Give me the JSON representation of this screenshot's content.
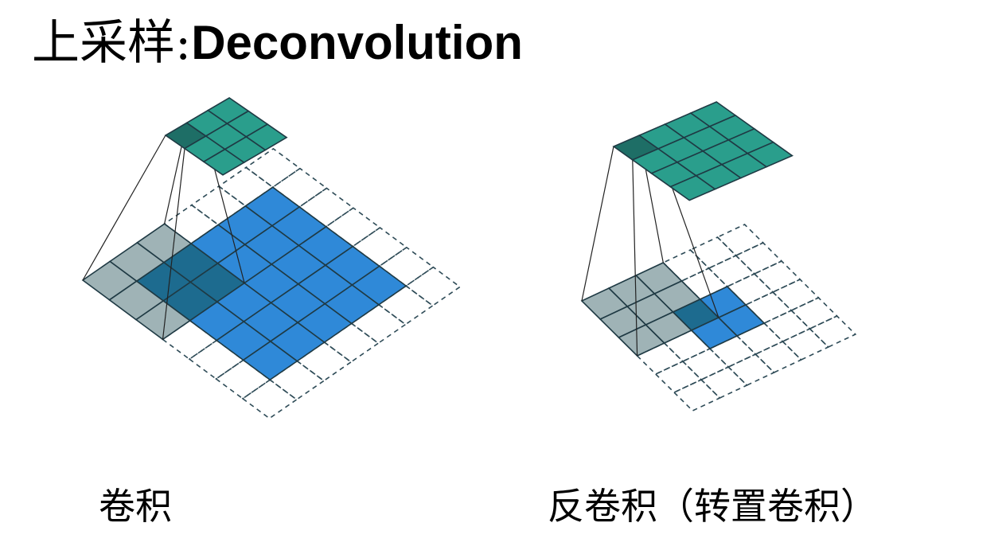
{
  "title": {
    "prefix": "上采样:",
    "main": "Deconvolution"
  },
  "captions": {
    "convolution": "卷积",
    "transposed_convolution": "反卷积（转置卷积）"
  },
  "colors": {
    "output_teal": "#2a9e8c",
    "output_active": "#1e6e66",
    "input_blue": "#2f89d8",
    "kernel_gray": "#9fb3b6",
    "kernel_overlap": "#1d6b8f",
    "dashed_outline": "#2e4b57",
    "projection_line": "#222222"
  },
  "figures": {
    "convolution": {
      "input_cells": 5,
      "padding": 1,
      "kernel_size": 3,
      "output_cells": 3,
      "output_active_cell": [
        0,
        0
      ]
    },
    "transposed_convolution": {
      "input_cells": 2,
      "padding": 2,
      "kernel_size": 3,
      "output_cells": 4,
      "output_active_cell": [
        0,
        0
      ]
    }
  }
}
